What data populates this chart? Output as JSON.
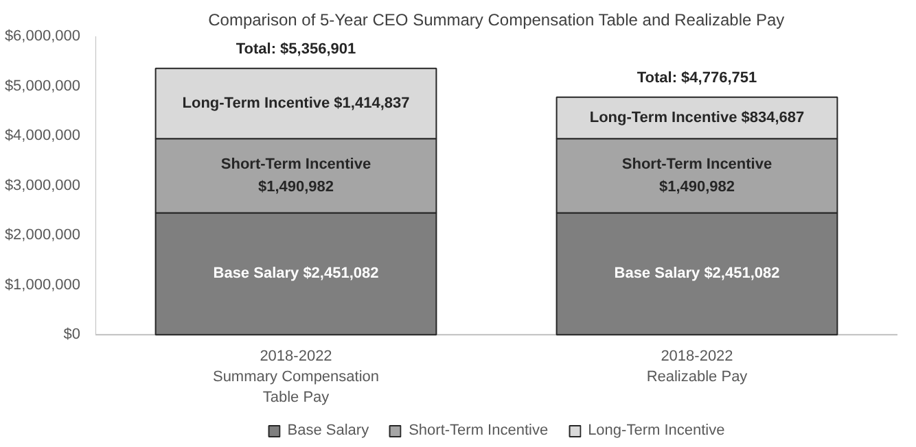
{
  "chart_data": {
    "type": "bar",
    "stacked": true,
    "title": "Comparison of 5-Year CEO Summary Compensation Table and Realizable Pay",
    "categories": [
      "2018-2022\nSummary Compensation\nTable Pay",
      "2018-2022\nRealizable Pay"
    ],
    "series": [
      {
        "name": "Base Salary",
        "color": "#7f7f7f",
        "values": [
          2451082,
          2451082
        ],
        "value_labels": [
          "Base Salary $2,451,082",
          "Base Salary $2,451,082"
        ]
      },
      {
        "name": "Short-Term Incentive",
        "color": "#a5a5a5",
        "values": [
          1490982,
          1490982
        ],
        "value_labels": [
          "Short-Term Incentive\n$1,490,982",
          "Short-Term Incentive\n$1,490,982"
        ]
      },
      {
        "name": "Long-Term Incentive",
        "color": "#d9d9d9",
        "values": [
          1414837,
          834687
        ],
        "value_labels": [
          "Long-Term Incentive $1,414,837",
          "Long-Term Incentive $834,687"
        ]
      }
    ],
    "totals": [
      "Total: $5,356,901",
      "Total: $4,776,751"
    ],
    "ylim": [
      0,
      6000000
    ],
    "yticks": [
      {
        "value": 0,
        "label": "$0"
      },
      {
        "value": 1000000,
        "label": "$1,000,000"
      },
      {
        "value": 2000000,
        "label": "$2,000,000"
      },
      {
        "value": 3000000,
        "label": "$3,000,000"
      },
      {
        "value": 4000000,
        "label": "$4,000,000"
      },
      {
        "value": 5000000,
        "label": "$5,000,000"
      },
      {
        "value": 6000000,
        "label": "$6,000,000"
      }
    ],
    "grid": false,
    "legend": "bottom"
  }
}
